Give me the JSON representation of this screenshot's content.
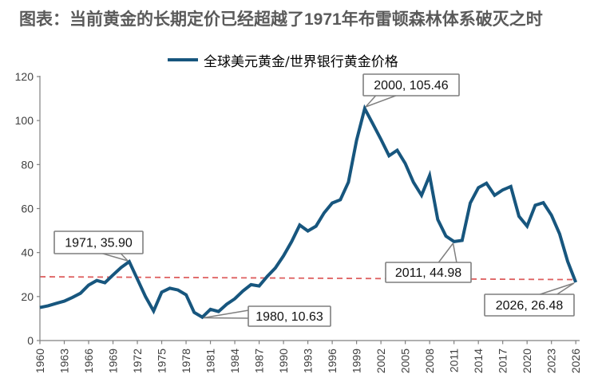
{
  "title": "图表：当前黄金的长期定价已经超越了1971年布雷顿森林体系破灭之时",
  "legend": {
    "label": "全球美元黄金/世界银行黄金价格"
  },
  "colors": {
    "line": "#17567E",
    "trend": "#DE5F5F",
    "axis": "#808080",
    "tick_label": "#404040",
    "title_text": "#5a5a5a",
    "callout_border": "#7f7f7f",
    "callout_text": "#111111"
  },
  "chart_data": {
    "type": "line",
    "title": "当前黄金的长期定价已经超越了1971年布雷顿森林体系破灭之时",
    "xlabel": "",
    "ylabel": "",
    "xlim": [
      1960,
      2026
    ],
    "ylim": [
      0,
      120
    ],
    "grid": false,
    "legend_position": "top",
    "x_ticks": [
      1960,
      1963,
      1966,
      1969,
      1972,
      1975,
      1978,
      1981,
      1984,
      1987,
      1990,
      1993,
      1996,
      1999,
      2002,
      2005,
      2008,
      2011,
      2014,
      2017,
      2020,
      2023,
      2026
    ],
    "y_ticks": [
      0,
      20,
      40,
      60,
      80,
      100,
      120
    ],
    "x": [
      1960,
      1961,
      1962,
      1963,
      1964,
      1965,
      1966,
      1967,
      1968,
      1969,
      1970,
      1971,
      1972,
      1973,
      1974,
      1975,
      1976,
      1977,
      1978,
      1979,
      1980,
      1981,
      1982,
      1983,
      1984,
      1985,
      1986,
      1987,
      1988,
      1989,
      1990,
      1991,
      1992,
      1993,
      1994,
      1995,
      1996,
      1997,
      1998,
      1999,
      2000,
      2001,
      2002,
      2003,
      2004,
      2005,
      2006,
      2007,
      2008,
      2009,
      2010,
      2011,
      2012,
      2013,
      2014,
      2015,
      2016,
      2017,
      2018,
      2019,
      2020,
      2021,
      2022,
      2023,
      2024,
      2025,
      2026
    ],
    "series": [
      {
        "name": "全球美元黄金/世界银行黄金价格",
        "values": [
          15.0,
          15.8,
          16.9,
          17.9,
          19.6,
          21.5,
          25.2,
          27.3,
          26.3,
          29.8,
          33.2,
          35.9,
          28.0,
          20.0,
          13.4,
          22.0,
          23.8,
          23.0,
          20.8,
          12.8,
          10.63,
          14.2,
          13.2,
          16.5,
          19.0,
          22.5,
          25.4,
          24.8,
          29.2,
          33.0,
          38.5,
          45.0,
          52.5,
          49.8,
          52.0,
          58.0,
          62.5,
          64.0,
          72.0,
          91.0,
          105.46,
          98.5,
          91.5,
          84.0,
          86.5,
          80.5,
          72.0,
          66.0,
          75.0,
          55.0,
          47.5,
          44.98,
          45.5,
          62.5,
          69.5,
          71.5,
          66.0,
          68.5,
          70.0,
          56.5,
          52.0,
          61.5,
          62.7,
          57.0,
          48.5,
          36.0,
          26.48
        ]
      }
    ],
    "trendline": {
      "style": "dashed",
      "value_at_1960": 29.0,
      "value_at_2026": 27.7
    },
    "annotations": [
      {
        "label": "1971, 35.90",
        "year": 1971,
        "value": 35.9
      },
      {
        "label": "2000, 105.46",
        "year": 2000,
        "value": 105.46
      },
      {
        "label": "2011, 44.98",
        "year": 2011,
        "value": 44.98
      },
      {
        "label": "1980, 10.63",
        "year": 1980,
        "value": 10.63
      },
      {
        "label": "2026, 26.48",
        "year": 2026,
        "value": 26.48
      }
    ]
  }
}
